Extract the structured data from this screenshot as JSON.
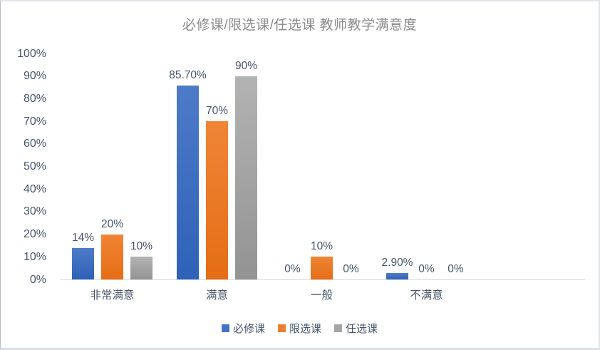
{
  "chart_data": {
    "type": "bar",
    "title": "必修课/限选课/任选课 教师教学满意度",
    "categories": [
      "非常满意",
      "满意",
      "一般",
      "不满意"
    ],
    "series": [
      {
        "name": "必修课",
        "color": "#4472C4",
        "gradient_top": "#4E7BC8",
        "gradient_bottom": "#2E61B8",
        "values": [
          14,
          85.7,
          0,
          2.9
        ],
        "labels": [
          "14%",
          "85.70%",
          "0%",
          "2.90%"
        ]
      },
      {
        "name": "限选课",
        "color": "#ED7D31",
        "gradient_top": "#F08536",
        "gradient_bottom": "#E56D15",
        "values": [
          20,
          70,
          10,
          0
        ],
        "labels": [
          "20%",
          "70%",
          "10%",
          "0%"
        ]
      },
      {
        "name": "任选课",
        "color": "#A5A5A5",
        "gradient_top": "#B3B3B3",
        "gradient_bottom": "#939393",
        "values": [
          10,
          90,
          0,
          0
        ],
        "labels": [
          "10%",
          "90%",
          "0%",
          "0%"
        ]
      }
    ],
    "y_axis": {
      "ticks": [
        "0%",
        "10%",
        "20%",
        "30%",
        "40%",
        "50%",
        "60%",
        "70%",
        "80%",
        "90%",
        "100%"
      ],
      "min": 0,
      "max": 100
    },
    "grid": false,
    "legend_position": "bottom",
    "colors": {
      "axis_text": "#44546A",
      "label_text": "#44546A",
      "title_text": "#8A8A8A",
      "axis_line": "#D9D9D9"
    }
  }
}
